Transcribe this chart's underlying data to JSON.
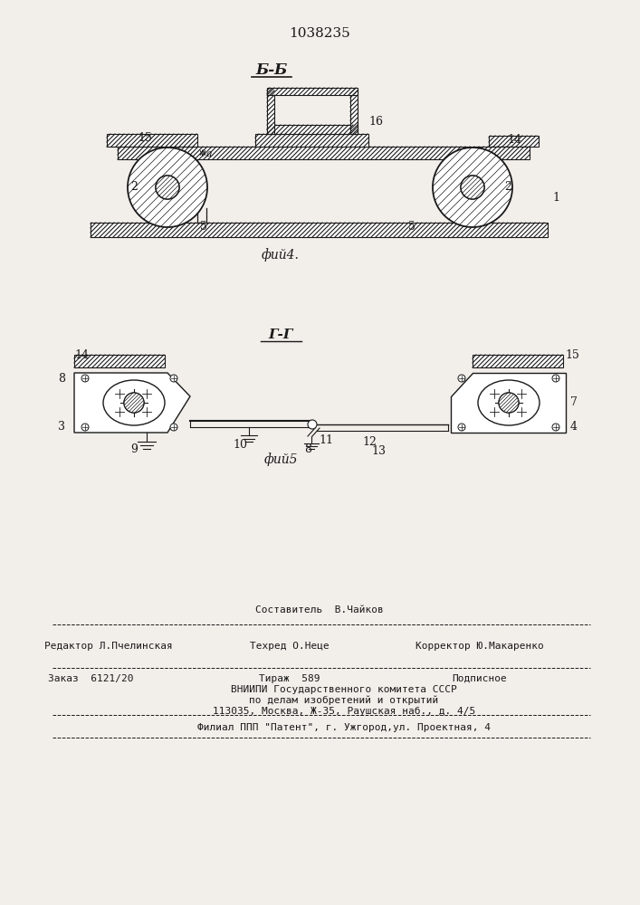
{
  "patent_number": "1038235",
  "fig4_label": "Б-Б",
  "fig5_label": "Г-Г",
  "fig4_caption": "фий4.",
  "fig5_caption": "фий5",
  "bg_color": "#f2eeea",
  "line_color": "#1a1a1a",
  "footer_sestavitel": "Составитель  В.Чайков",
  "footer_redaktor": "Редактор Л.Пчелинская",
  "footer_tehred": "Техред О.Неце",
  "footer_korrektor": "Корректор Ю.Макаренко",
  "footer_zakaz": "Заказ  6121/20",
  "footer_tirazh": "Тираж  589",
  "footer_podpisnoe": "Подписное",
  "footer_vniipи": "ВНИИПИ Государственного комитета СССР",
  "footer_po_delam": "по делам изобретений и открытий",
  "footer_address": "113035, Москва, Ж-35, Раушская наб., д. 4/5",
  "footer_filial": "Филиал ППП \"Патент\", г. Ужгород,ул. Проектная, 4"
}
